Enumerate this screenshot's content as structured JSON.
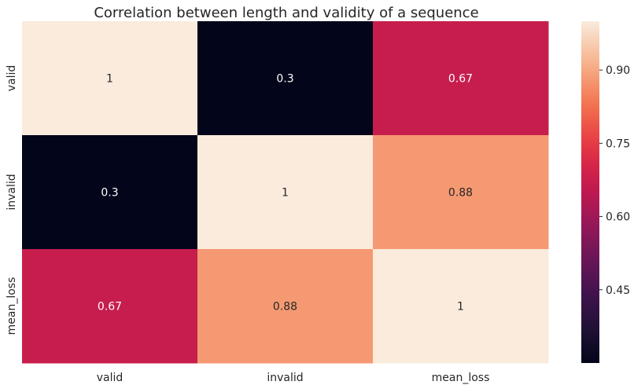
{
  "chart_data": {
    "type": "heatmap",
    "title": "Correlation between length and validity of a sequence",
    "xlabel": "",
    "ylabel": "",
    "x_categories": [
      "valid",
      "invalid",
      "mean_loss"
    ],
    "y_categories": [
      "valid",
      "invalid",
      "mean_loss"
    ],
    "values": [
      [
        1,
        0.3,
        0.67
      ],
      [
        0.3,
        1,
        0.88
      ],
      [
        0.67,
        0.88,
        1
      ]
    ],
    "annotations": [
      [
        "1",
        "0.3",
        "0.67"
      ],
      [
        "0.3",
        "1",
        "0.88"
      ],
      [
        "0.67",
        "0.88",
        "1"
      ]
    ],
    "colorbar": {
      "range": [
        0.3,
        1.0
      ],
      "ticks": [
        0.45,
        0.6,
        0.75,
        0.9
      ],
      "tick_labels": [
        "0.45",
        "0.60",
        "0.75",
        "0.90"
      ],
      "colormap": "rocket"
    },
    "grid": false,
    "legend": "colorbar-right"
  }
}
